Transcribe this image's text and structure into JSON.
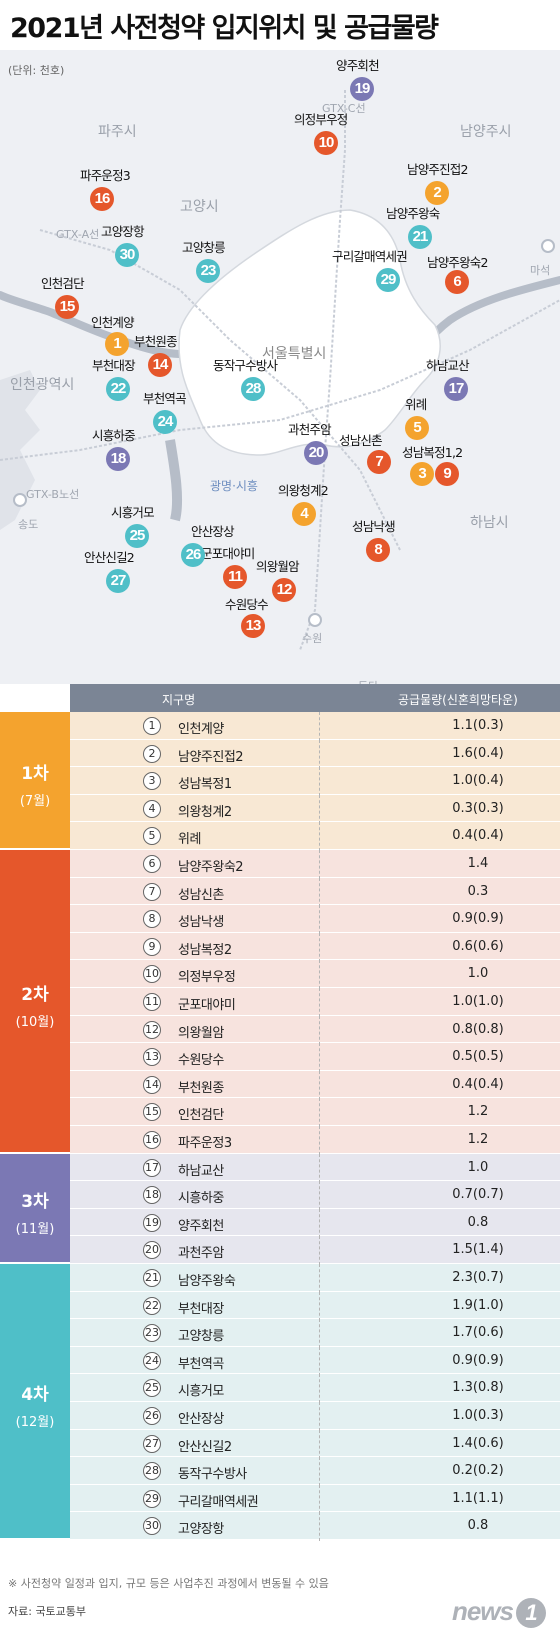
{
  "title": "2021년 사전청약 입지위치 및 공급물량",
  "unit": "(단위: 천호)",
  "map_regions": {
    "paju": "파주시",
    "namyangju": "남양주시",
    "goyang": "고양시",
    "incheon": "인천광역시",
    "seoul": "서울특별시",
    "hanam": "하남시",
    "gwangmyeong_siheung": "광명·시흥",
    "songdo": "송도",
    "masuk": "마석",
    "suwon": "수원",
    "dongtan": "동탄",
    "gtx_c": "GTX-C선",
    "gtx_a": "GTX-A선",
    "gtx_b": "GTX-B노선"
  },
  "colors": {
    "round1": "#f4a32e",
    "round2": "#e5572b",
    "round3": "#7b78b4",
    "round4": "#4fbfc8",
    "round1_bg": "#f8e8d4",
    "round2_bg": "#f7e3de",
    "round3_bg": "#e6e6ee",
    "round4_bg": "#e3f0f1",
    "header": "#7b8595",
    "seoul_fill": "#ffffff",
    "river": "#b6bdc8"
  },
  "markers": [
    {
      "num": "1",
      "label": "인천계양",
      "round": 1
    },
    {
      "num": "2",
      "label": "남양주진접2",
      "round": 1
    },
    {
      "num": "3",
      "label": "성남복정1,2",
      "round": 1
    },
    {
      "num": "4",
      "label": "의왕청계2",
      "round": 1
    },
    {
      "num": "5",
      "label": "위례",
      "round": 1
    },
    {
      "num": "6",
      "label": "남양주왕숙2",
      "round": 2
    },
    {
      "num": "7",
      "label": "성남신촌",
      "round": 2
    },
    {
      "num": "8",
      "label": "성남낙생",
      "round": 2
    },
    {
      "num": "9",
      "label": "",
      "round": 2
    },
    {
      "num": "10",
      "label": "의정부우정",
      "round": 2
    },
    {
      "num": "11",
      "label": "군포대야미",
      "round": 2
    },
    {
      "num": "12",
      "label": "의왕월암",
      "round": 2
    },
    {
      "num": "13",
      "label": "수원당수",
      "round": 2
    },
    {
      "num": "14",
      "label": "부천원종",
      "round": 2
    },
    {
      "num": "15",
      "label": "인천검단",
      "round": 2
    },
    {
      "num": "16",
      "label": "파주운정3",
      "round": 2
    },
    {
      "num": "17",
      "label": "하남교산",
      "round": 3
    },
    {
      "num": "18",
      "label": "시흥하중",
      "round": 3
    },
    {
      "num": "19",
      "label": "양주회천",
      "round": 3
    },
    {
      "num": "20",
      "label": "과천주암",
      "round": 3
    },
    {
      "num": "21",
      "label": "남양주왕숙",
      "round": 4
    },
    {
      "num": "22",
      "label": "부천대장",
      "round": 4
    },
    {
      "num": "23",
      "label": "고양창릉",
      "round": 4
    },
    {
      "num": "24",
      "label": "부천역곡",
      "round": 4
    },
    {
      "num": "25",
      "label": "시흥거모",
      "round": 4
    },
    {
      "num": "26",
      "label": "안산장상",
      "round": 4
    },
    {
      "num": "27",
      "label": "안산신길2",
      "round": 4
    },
    {
      "num": "28",
      "label": "동작구수방사",
      "round": 4
    },
    {
      "num": "29",
      "label": "구리갈매역세권",
      "round": 4
    },
    {
      "num": "30",
      "label": "고양장항",
      "round": 4
    }
  ],
  "table": {
    "header_district": "지구명",
    "header_supply": "공급물량(신혼희망타운)",
    "rounds": [
      {
        "title": "1차",
        "month": "(7월)",
        "rows": [
          {
            "num": "1",
            "name": "인천계양",
            "amount": "1.1(0.3)"
          },
          {
            "num": "2",
            "name": "남양주진접2",
            "amount": "1.6(0.4)"
          },
          {
            "num": "3",
            "name": "성남복정1",
            "amount": "1.0(0.4)"
          },
          {
            "num": "4",
            "name": "의왕청계2",
            "amount": "0.3(0.3)"
          },
          {
            "num": "5",
            "name": "위례",
            "amount": "0.4(0.4)"
          }
        ]
      },
      {
        "title": "2차",
        "month": "(10월)",
        "rows": [
          {
            "num": "6",
            "name": "남양주왕숙2",
            "amount": "1.4"
          },
          {
            "num": "7",
            "name": "성남신촌",
            "amount": "0.3"
          },
          {
            "num": "8",
            "name": "성남낙생",
            "amount": "0.9(0.9)"
          },
          {
            "num": "9",
            "name": "성남복정2",
            "amount": "0.6(0.6)"
          },
          {
            "num": "10",
            "name": "의정부우정",
            "amount": "1.0"
          },
          {
            "num": "11",
            "name": "군포대야미",
            "amount": "1.0(1.0)"
          },
          {
            "num": "12",
            "name": "의왕월암",
            "amount": "0.8(0.8)"
          },
          {
            "num": "13",
            "name": "수원당수",
            "amount": "0.5(0.5)"
          },
          {
            "num": "14",
            "name": "부천원종",
            "amount": "0.4(0.4)"
          },
          {
            "num": "15",
            "name": "인천검단",
            "amount": "1.2"
          },
          {
            "num": "16",
            "name": "파주운정3",
            "amount": "1.2"
          }
        ]
      },
      {
        "title": "3차",
        "month": "(11월)",
        "rows": [
          {
            "num": "17",
            "name": "하남교산",
            "amount": "1.0"
          },
          {
            "num": "18",
            "name": "시흥하중",
            "amount": "0.7(0.7)"
          },
          {
            "num": "19",
            "name": "양주회천",
            "amount": "0.8"
          },
          {
            "num": "20",
            "name": "과천주암",
            "amount": "1.5(1.4)"
          }
        ]
      },
      {
        "title": "4차",
        "month": "(12월)",
        "rows": [
          {
            "num": "21",
            "name": "남양주왕숙",
            "amount": "2.3(0.7)"
          },
          {
            "num": "22",
            "name": "부천대장",
            "amount": "1.9(1.0)"
          },
          {
            "num": "23",
            "name": "고양창릉",
            "amount": "1.7(0.6)"
          },
          {
            "num": "24",
            "name": "부천역곡",
            "amount": "0.9(0.9)"
          },
          {
            "num": "25",
            "name": "시흥거모",
            "amount": "1.3(0.8)"
          },
          {
            "num": "26",
            "name": "안산장상",
            "amount": "1.0(0.3)"
          },
          {
            "num": "27",
            "name": "안산신길2",
            "amount": "1.4(0.6)"
          },
          {
            "num": "28",
            "name": "동작구수방사",
            "amount": "0.2(0.2)"
          },
          {
            "num": "29",
            "name": "구리갈매역세권",
            "amount": "1.1(1.1)"
          },
          {
            "num": "30",
            "name": "고양장항",
            "amount": "0.8"
          }
        ]
      }
    ]
  },
  "note": "※ 사전청약 일정과 입지, 규모 등은 사업추진 과정에서 변동될 수 있음",
  "source": "자료: 국토교통부",
  "logo_text": "news",
  "logo_num": "1"
}
